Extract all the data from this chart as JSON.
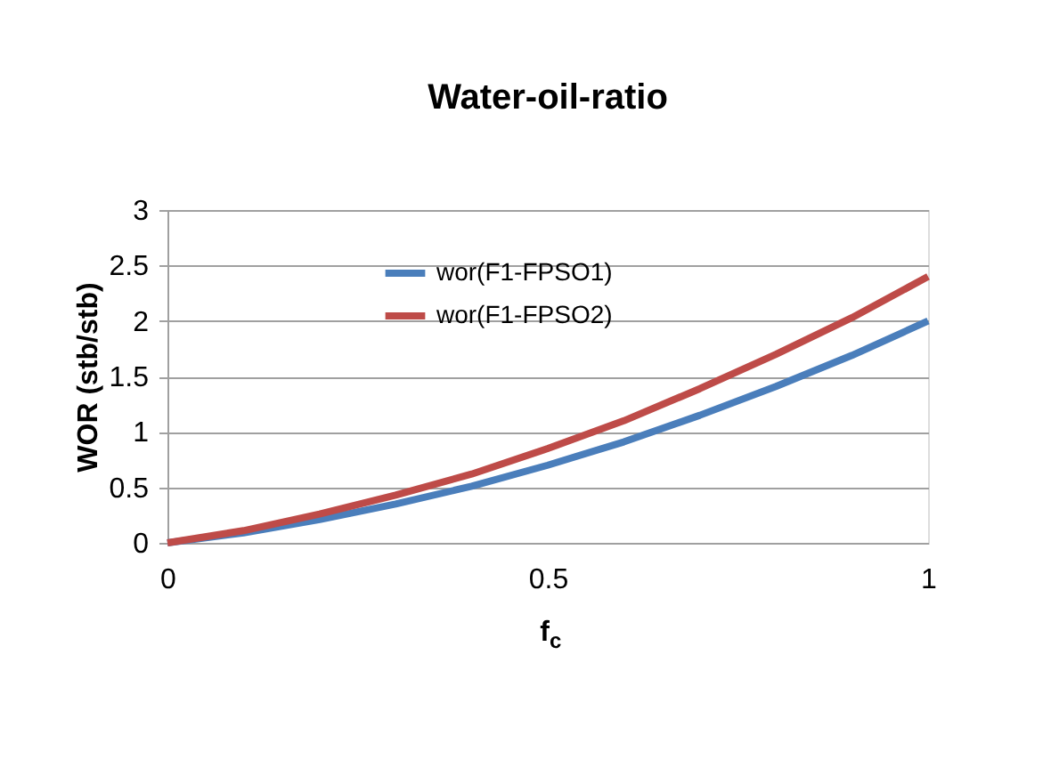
{
  "chart_data": {
    "type": "line",
    "title": "Water-oil-ratio",
    "xlabel": "f$_{c}$",
    "ylabel": "WOR (stb/stb)",
    "x": [
      0,
      0.1,
      0.2,
      0.3,
      0.4,
      0.5,
      0.6,
      0.7,
      0.8,
      0.9,
      1
    ],
    "series": [
      {
        "name": "wor(F1-FPSO1)",
        "color": "#4a7ebb",
        "values": [
          0,
          0.09,
          0.21,
          0.35,
          0.51,
          0.7,
          0.91,
          1.15,
          1.41,
          1.69,
          2.0
        ]
      },
      {
        "name": "wor(F1-FPSO2)",
        "color": "#be4b48",
        "values": [
          0,
          0.11,
          0.26,
          0.43,
          0.62,
          0.85,
          1.1,
          1.39,
          1.7,
          2.03,
          2.4
        ]
      }
    ],
    "xlim": [
      0,
      1
    ],
    "xticks": [
      0,
      0.5,
      1
    ],
    "ylim": [
      0,
      3
    ],
    "yticks": [
      0,
      0.5,
      1,
      1.5,
      2,
      2.5,
      3
    ],
    "grid": "y",
    "legend": "top",
    "marker": "none",
    "line_style": "solid"
  }
}
